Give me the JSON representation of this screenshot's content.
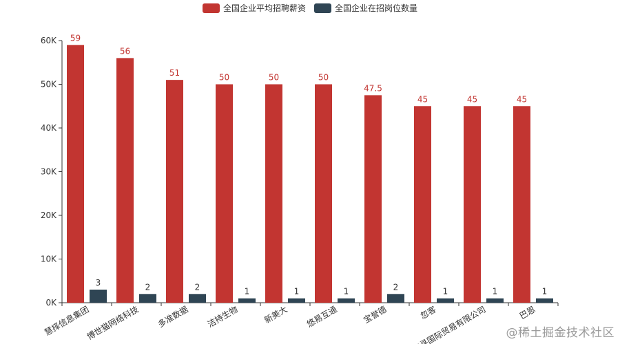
{
  "chart_data": {
    "type": "bar",
    "categories": [
      "慧择信息集团",
      "博世猫网络科技",
      "多准数据",
      "洁持生物",
      "新美大",
      "悠易互通",
      "宝誉德",
      "忽客",
      "丰寻国际贸易有限公司",
      "巴恩"
    ],
    "series": [
      {
        "name": "全国企业平均招聘薪资",
        "color": "#c23531",
        "values": [
          59000,
          56000,
          51000,
          50000,
          50000,
          50000,
          47500,
          45000,
          45000,
          45000
        ],
        "labels": [
          "59",
          "56",
          "51",
          "50",
          "50",
          "50",
          "47.5",
          "45",
          "45",
          "45"
        ]
      },
      {
        "name": "全国企业在招岗位数量",
        "color": "#2f4554",
        "values": [
          3000,
          2000,
          2000,
          1000,
          1000,
          1000,
          2000,
          1000,
          1000,
          1000
        ],
        "labels": [
          "3",
          "2",
          "2",
          "1",
          "1",
          "1",
          "2",
          "1",
          "1",
          "1"
        ]
      }
    ],
    "ylim": [
      0,
      60000
    ],
    "yticks": [
      "0K",
      "10K",
      "20K",
      "30K",
      "40K",
      "50K",
      "60K"
    ],
    "legend": "top-center",
    "grid": false
  },
  "watermark": "@稀土掘金技术社区"
}
